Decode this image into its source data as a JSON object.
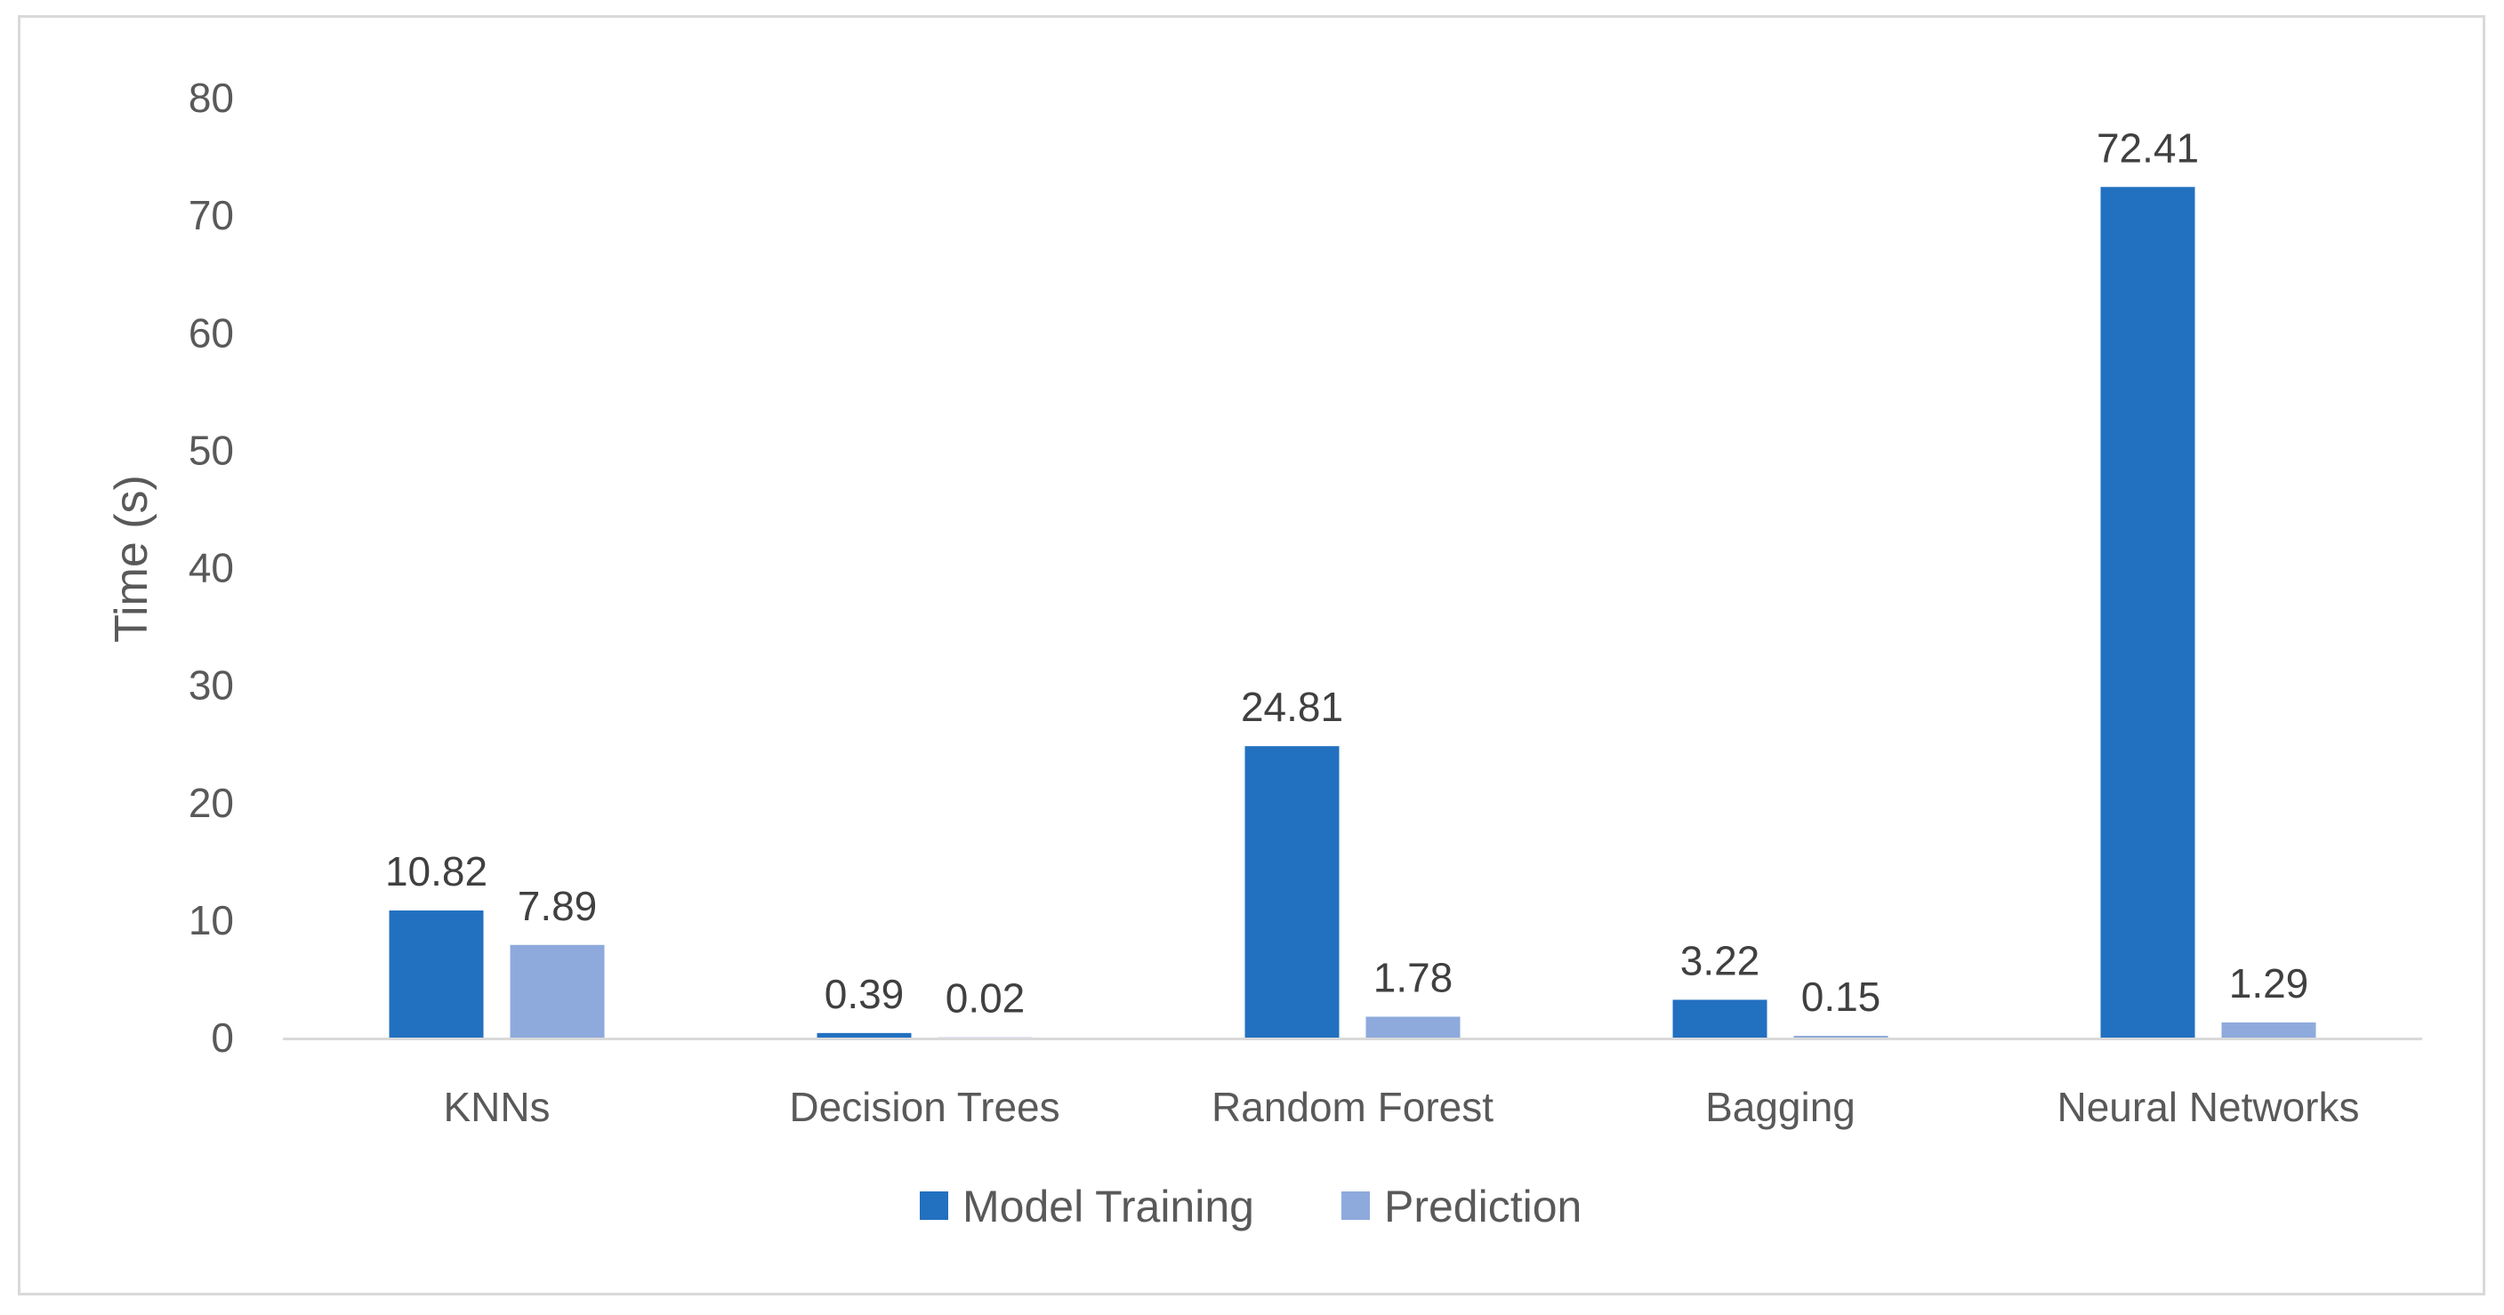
{
  "chart_data": {
    "type": "bar",
    "title": "",
    "xlabel": "",
    "ylabel": "Time (s)",
    "ylim": [
      0,
      80
    ],
    "yticks": [
      0,
      10,
      20,
      30,
      40,
      50,
      60,
      70,
      80
    ],
    "grid": false,
    "legend_position": "bottom",
    "categories": [
      "KNNs",
      "Decision Trees",
      "Random Forest",
      "Bagging",
      "Neural Networks"
    ],
    "series": [
      {
        "name": "Model Training",
        "color": "#2270C0",
        "values": [
          10.82,
          0.39,
          24.81,
          3.22,
          72.41
        ],
        "labels": [
          "10.82",
          "0.39",
          "24.81",
          "3.22",
          "72.41"
        ]
      },
      {
        "name": "Prediction",
        "color": "#8EAADC",
        "values": [
          7.89,
          0.02,
          1.78,
          0.15,
          1.29
        ],
        "labels": [
          "7.89",
          "0.02",
          "1.78",
          "0.15",
          "1.29"
        ]
      }
    ],
    "axis_color": "#d9d9d9"
  }
}
